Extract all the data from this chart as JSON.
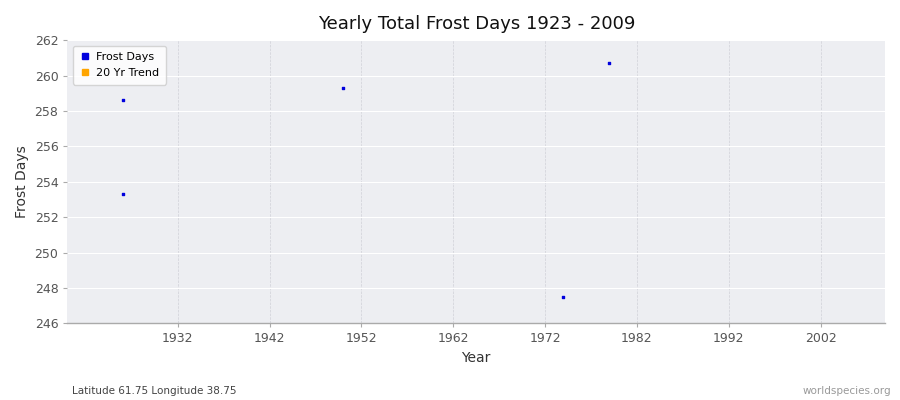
{
  "title": "Yearly Total Frost Days 1923 - 2009",
  "xlabel": "Year",
  "ylabel": "Frost Days",
  "subtitle": "Latitude 61.75 Longitude 38.75",
  "watermark": "worldspecies.org",
  "xlim": [
    1920,
    2009
  ],
  "ylim": [
    246,
    262
  ],
  "yticks": [
    246,
    248,
    250,
    252,
    254,
    256,
    258,
    260,
    262
  ],
  "xticks": [
    1932,
    1942,
    1952,
    1962,
    1972,
    1982,
    1992,
    2002
  ],
  "fig_bg_color": "#ffffff",
  "plot_bg_color": "#edeef2",
  "grid_color_h": "#ffffff",
  "grid_color_v": "#d0d0d8",
  "scatter_color": "#0000dd",
  "trend_color": "#ffa500",
  "data_x": [
    1926,
    1926,
    1950,
    1974,
    1979
  ],
  "data_y": [
    258.6,
    253.3,
    259.3,
    247.5,
    260.7
  ],
  "legend_frost": "Frost Days",
  "legend_trend": "20 Yr Trend",
  "marker_size": 4
}
